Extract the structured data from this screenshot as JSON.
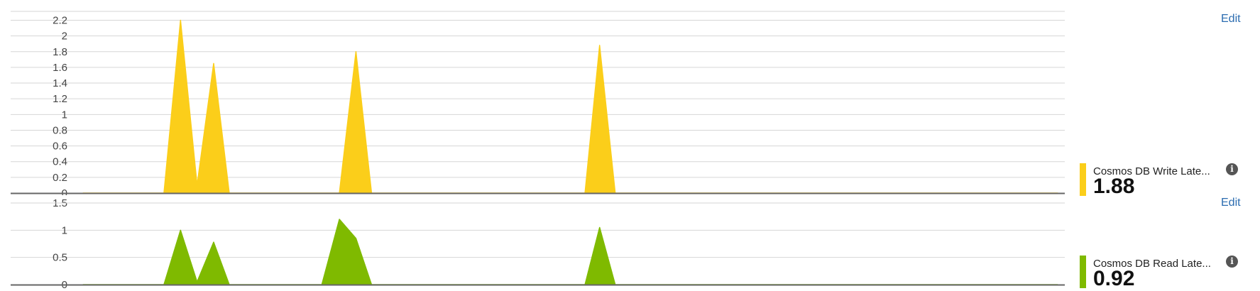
{
  "panels": {
    "top": {
      "edit_label": "Edit",
      "legend_name": "Cosmos DB Write Late...",
      "legend_value": "1.88",
      "color": "#fbce1a",
      "info_icon": "info-icon"
    },
    "bottom": {
      "edit_label": "Edit",
      "legend_name": "Cosmos DB Read Late...",
      "legend_value": "0.92",
      "color": "#7fba00",
      "info_icon": "info-icon"
    }
  },
  "chart_data": [
    {
      "type": "area",
      "title": "",
      "xlabel": "",
      "ylabel": "",
      "ylim": [
        0,
        2.2
      ],
      "yticks": [
        0,
        0.2,
        0.4,
        0.6,
        0.8,
        1,
        1.2,
        1.4,
        1.6,
        1.8,
        2,
        2.2
      ],
      "ytick_labels": [
        "0",
        "0.2",
        "0.4",
        "0.6",
        "0.8",
        "1",
        "1.2",
        "1.4",
        "1.6",
        "1.8",
        "2",
        "2.2"
      ],
      "grid": true,
      "xlim": [
        0,
        100
      ],
      "series": [
        {
          "name": "Cosmos DB Write Late...",
          "color": "#fbce1a",
          "x": [
            0,
            8.3,
            10,
            11.7,
            13.4,
            15,
            26.3,
            28,
            29.6,
            51.5,
            53,
            54.6,
            100
          ],
          "values": [
            0,
            0,
            2.2,
            0.1,
            1.65,
            0,
            0,
            1.8,
            0,
            0,
            1.88,
            0,
            0
          ]
        }
      ]
    },
    {
      "type": "area",
      "title": "",
      "xlabel": "",
      "ylabel": "",
      "ylim": [
        0,
        1.5
      ],
      "yticks": [
        0,
        0.5,
        1,
        1.5
      ],
      "ytick_labels": [
        "0",
        "0.5",
        "1",
        "1.5"
      ],
      "grid": true,
      "xlim": [
        0,
        100
      ],
      "series": [
        {
          "name": "Cosmos DB Read Late...",
          "color": "#7fba00",
          "x": [
            0,
            8.3,
            10,
            11.7,
            13.4,
            15,
            24.5,
            26.3,
            28,
            29.6,
            51.5,
            53,
            54.6,
            100
          ],
          "values": [
            0,
            0,
            1,
            0.05,
            0.78,
            0,
            0,
            1.2,
            0.85,
            0,
            0,
            1.05,
            0,
            0
          ]
        }
      ]
    }
  ]
}
